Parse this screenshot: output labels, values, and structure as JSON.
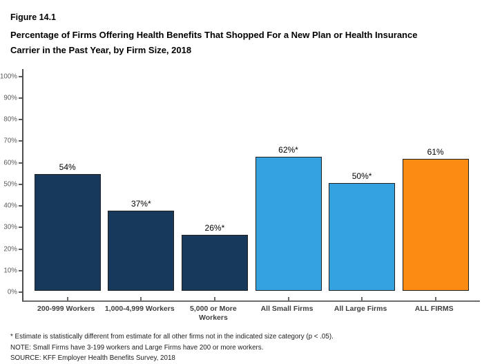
{
  "figure": {
    "label": "Figure 14.1",
    "title": "Percentage of Firms Offering Health Benefits That Shopped For a New Plan or Health Insurance Carrier in the Past Year, by Firm Size, 2018"
  },
  "chart_data": {
    "type": "bar",
    "title": "Percentage of Firms Offering Health Benefits That Shopped For a New Plan or Health Insurance Carrier in the Past Year, by Firm Size, 2018",
    "categories": [
      "200-999 Workers",
      "1,000-4,999 Workers",
      "5,000 or More Workers",
      "All Small Firms",
      "All Large Firms",
      "ALL FIRMS"
    ],
    "category_lines": [
      [
        "200-999 Workers"
      ],
      [
        "1,000-4,999 Workers"
      ],
      [
        "5,000 or More",
        "Workers"
      ],
      [
        "All Small Firms"
      ],
      [
        "All Large Firms"
      ],
      [
        "ALL FIRMS"
      ]
    ],
    "values": [
      54,
      37,
      26,
      62,
      50,
      61
    ],
    "value_labels": [
      "54%",
      "37%*",
      "26%*",
      "62%*",
      "50%*",
      "61%"
    ],
    "bar_colors": [
      "#16395C",
      "#16395C",
      "#16395C",
      "#33A2DE",
      "#33A2DE",
      "#FB8B12"
    ],
    "xlabel": "",
    "ylabel": "",
    "ylim": [
      0,
      100
    ],
    "ytick_step": 10,
    "ytick_labels": [
      "0%",
      "10%",
      "20%",
      "30%",
      "40%",
      "50%",
      "60%",
      "70%",
      "80%",
      "90%",
      "100%"
    ],
    "grid": false,
    "legend": false
  },
  "footnotes": [
    "* Estimate is statistically different from estimate for all other firms not in the indicated size category (p < .05).",
    "NOTE: Small Firms have 3-199 workers and Large Firms have 200 or more workers.",
    "SOURCE: KFF Employer Health Benefits Survey, 2018"
  ],
  "colors": {
    "navy": "#16395C",
    "light_blue": "#33A2DE",
    "orange": "#FB8B12",
    "axis": "#6B6B6B",
    "tick_text": "#595959",
    "category_text": "#3F3F3F",
    "background": "#FFFFFF"
  }
}
